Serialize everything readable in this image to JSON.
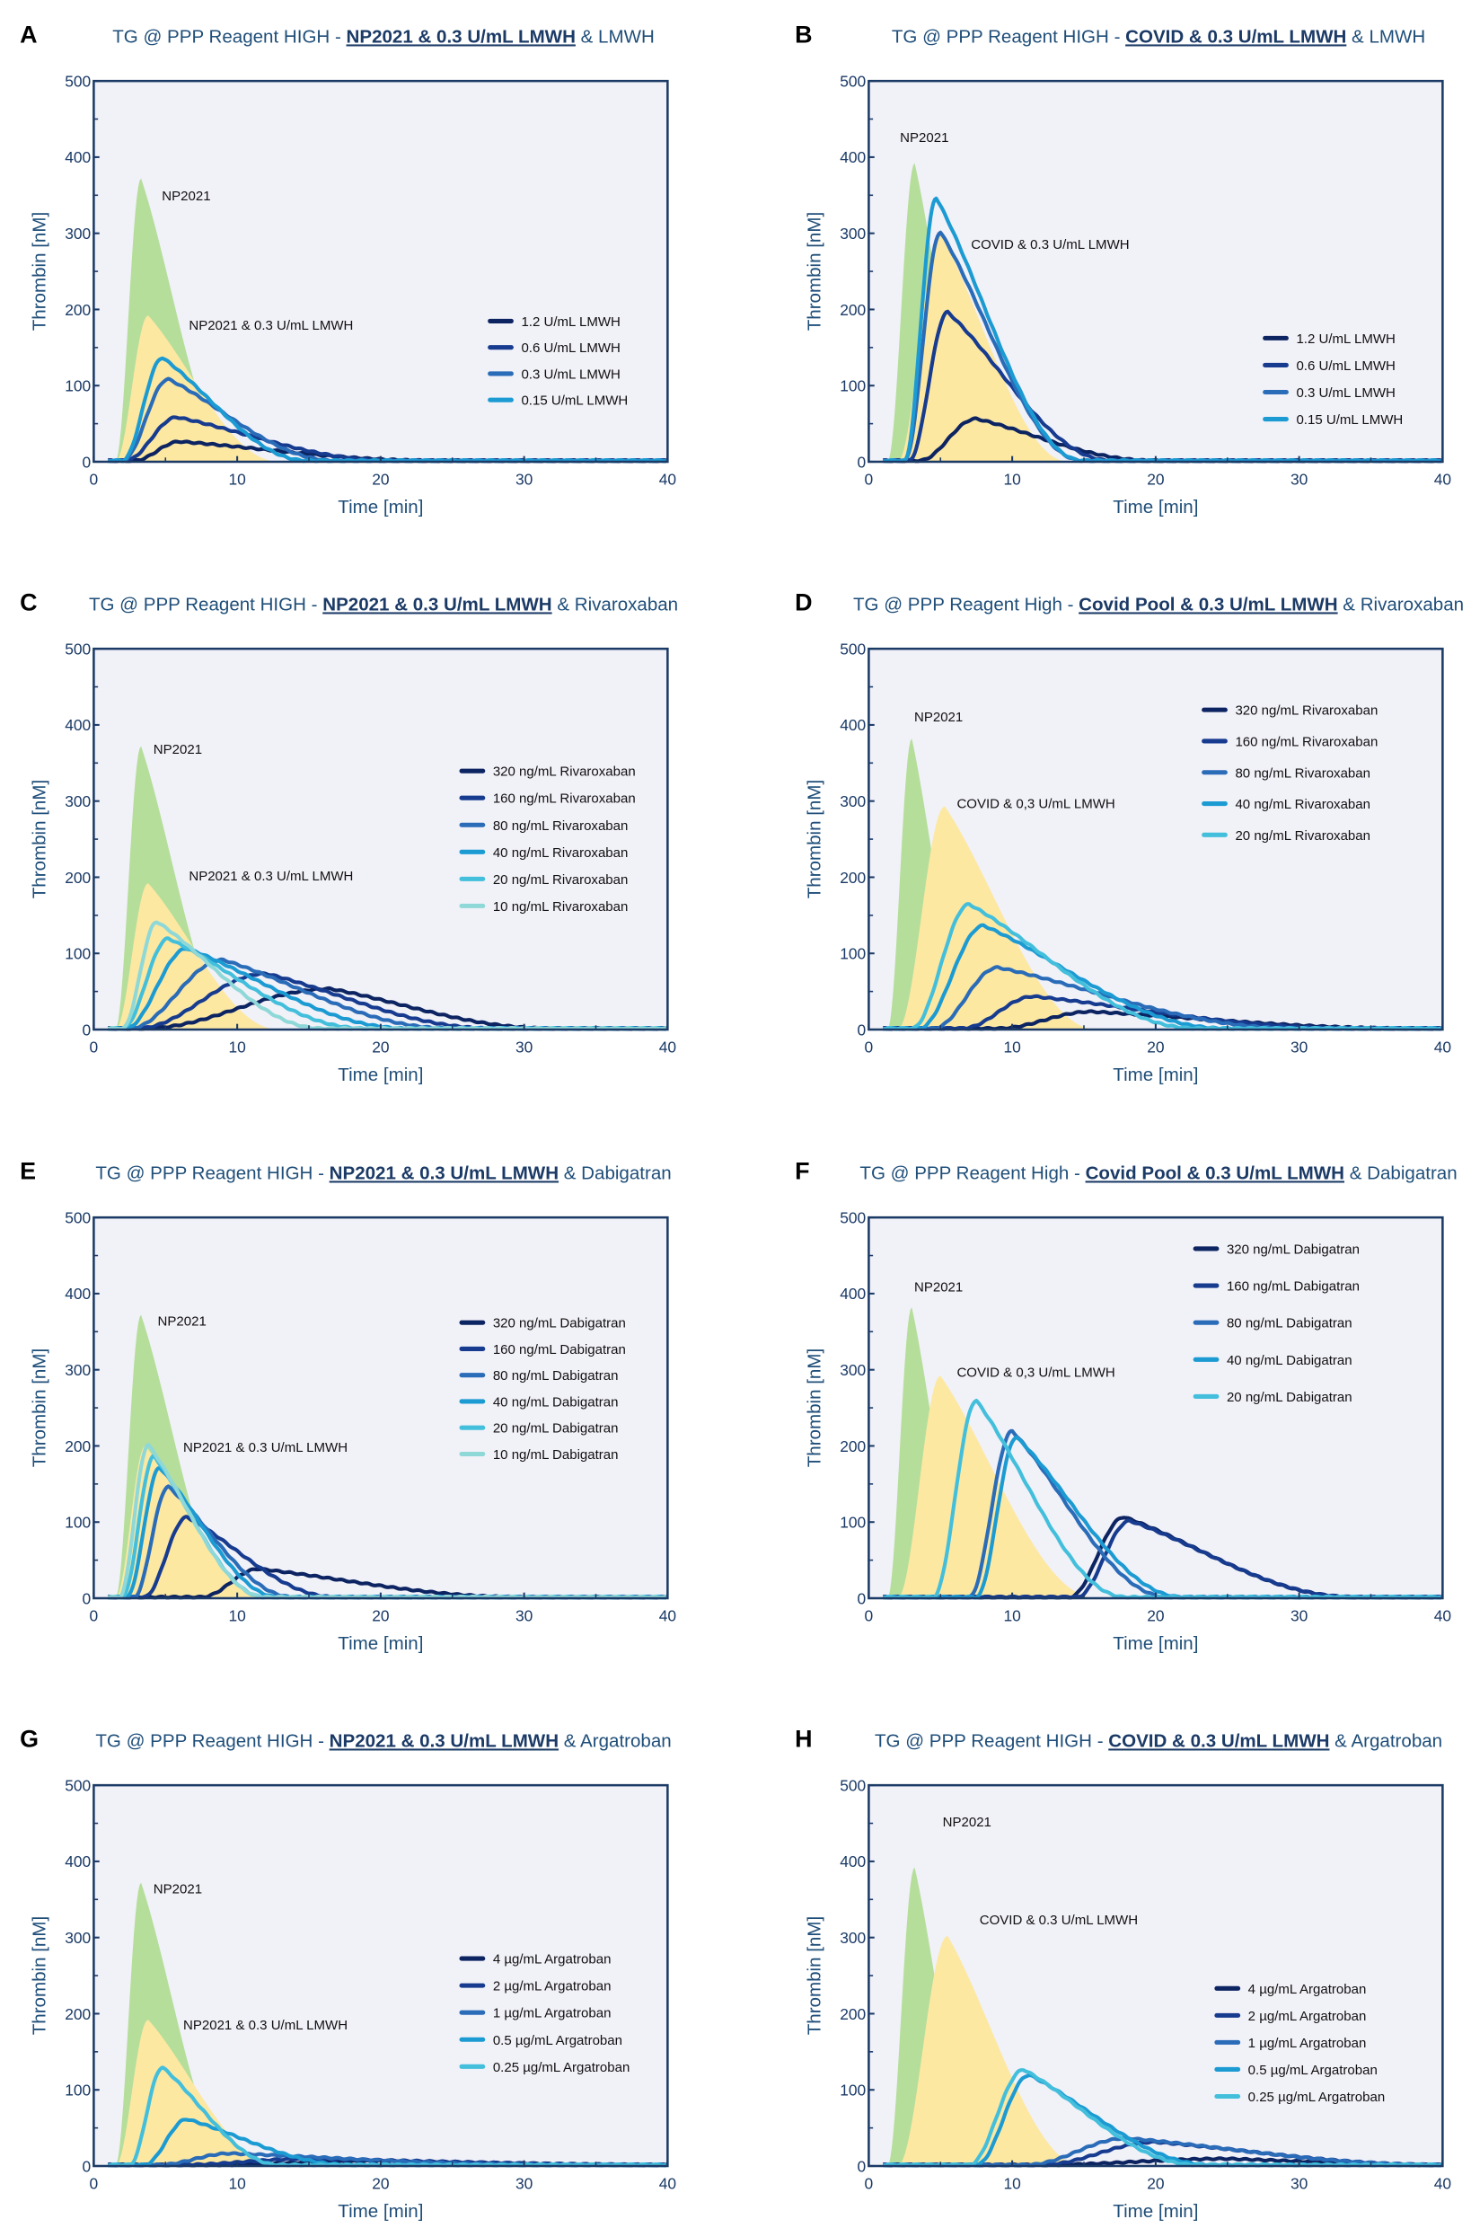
{
  "colors": {
    "plot_bg": "#f1f1f8",
    "frame": "#1b3a66",
    "np2021_fill": "#b6de9b",
    "treated_fill": "#fde8a2",
    "series": [
      "#0c2461",
      "#163b8f",
      "#2a6cb8",
      "#1c9bd3",
      "#43bfdc",
      "#8fd8d8"
    ]
  },
  "chart_data": [
    {
      "type": "area+line",
      "letter": "A",
      "title": {
        "prefix": "TG @ PPP Reagent HIGH - ",
        "highlight": "NP2021 & 0.3 U/mL LMWH",
        "suffix": " & LMWH"
      },
      "xlabel": "Time [min]",
      "ylabel": "Thrombin [nM]",
      "xlim": [
        0,
        40
      ],
      "ylim": [
        0,
        500
      ],
      "xticks": [
        0,
        10,
        20,
        30,
        40
      ],
      "yticks": [
        0,
        100,
        200,
        300,
        400,
        500
      ],
      "grid": false,
      "areas": [
        {
          "name": "NP2021",
          "onset": 1.5,
          "peak_time": 3.3,
          "peak": 372,
          "end": 10
        },
        {
          "name": "NP2021 & 0.3 U/mL LMWH",
          "onset": 1.5,
          "peak_time": 3.8,
          "peak": 192,
          "end": 13
        }
      ],
      "annotations": [
        "NP2021",
        "NP2021 & 0.3 U/mL LMWH"
      ],
      "series": [
        {
          "name": "1.2 U/mL LMWH",
          "onset": 2.8,
          "peak_time": 6.0,
          "peak": 25,
          "end": 24
        },
        {
          "name": "0.6 U/mL LMWH",
          "onset": 2.2,
          "peak_time": 5.8,
          "peak": 57,
          "end": 21
        },
        {
          "name": "0.3 U/mL LMWH",
          "onset": 2.0,
          "peak_time": 5.2,
          "peak": 107,
          "end": 17
        },
        {
          "name": "0.15 U/mL LMWH",
          "onset": 2.0,
          "peak_time": 4.8,
          "peak": 135,
          "end": 15
        }
      ]
    },
    {
      "type": "area+line",
      "letter": "B",
      "title": {
        "prefix": "TG @ PPP Reagent HIGH - ",
        "highlight": "COVID & 0.3 U/mL LMWH",
        "suffix": " & LMWH"
      },
      "xlabel": "Time [min]",
      "ylabel": "Thrombin [nM]",
      "xlim": [
        0,
        40
      ],
      "ylim": [
        0,
        500
      ],
      "xticks": [
        0,
        10,
        20,
        30,
        40
      ],
      "yticks": [
        0,
        100,
        200,
        300,
        400,
        500
      ],
      "grid": false,
      "areas": [
        {
          "name": "NP2021",
          "onset": 1.3,
          "peak_time": 3.2,
          "peak": 392,
          "end": 8
        },
        {
          "name": "COVID & 0.3 U/mL LMWH",
          "onset": 2.0,
          "peak_time": 5.0,
          "peak": 300,
          "end": 14
        }
      ],
      "annotations": [
        "NP2021",
        "COVID & 0.3 U/mL LMWH"
      ],
      "series": [
        {
          "name": "1.2 U/mL LMWH",
          "onset": 3.5,
          "peak_time": 7.5,
          "peak": 55,
          "end": 20
        },
        {
          "name": "0.6 U/mL LMWH",
          "onset": 2.8,
          "peak_time": 5.5,
          "peak": 195,
          "end": 17
        },
        {
          "name": "0.3 U/mL LMWH",
          "onset": 2.5,
          "peak_time": 5.0,
          "peak": 300,
          "end": 15
        },
        {
          "name": "0.15 U/mL LMWH",
          "onset": 2.5,
          "peak_time": 4.7,
          "peak": 345,
          "end": 15
        }
      ]
    },
    {
      "type": "area+line",
      "letter": "C",
      "title": {
        "prefix": "TG @ PPP Reagent HIGH - ",
        "highlight": "NP2021 & 0.3 U/mL LMWH",
        "suffix": " & Rivaroxaban"
      },
      "xlabel": "Time [min]",
      "ylabel": "Thrombin [nM]",
      "xlim": [
        0,
        40
      ],
      "ylim": [
        0,
        500
      ],
      "xticks": [
        0,
        10,
        20,
        30,
        40
      ],
      "yticks": [
        0,
        100,
        200,
        300,
        400,
        500
      ],
      "grid": false,
      "areas": [
        {
          "name": "NP2021",
          "onset": 1.5,
          "peak_time": 3.3,
          "peak": 372,
          "end": 10
        },
        {
          "name": "NP2021 & 0.3 U/mL LMWH",
          "onset": 1.5,
          "peak_time": 3.8,
          "peak": 192,
          "end": 13
        }
      ],
      "annotations": [
        "NP2021",
        "NP2021 & 0.3 U/mL LMWH"
      ],
      "series": [
        {
          "name": "320 ng/mL Rivaroxaban",
          "onset": 3.5,
          "peak_time": 16.5,
          "peak": 52,
          "end": 32
        },
        {
          "name": "160 ng/mL Rivaroxaban",
          "onset": 3.0,
          "peak_time": 12.0,
          "peak": 72,
          "end": 28
        },
        {
          "name": "80 ng/mL Rivaroxaban",
          "onset": 2.5,
          "peak_time": 9.0,
          "peak": 90,
          "end": 25
        },
        {
          "name": "40 ng/mL Rivaroxaban",
          "onset": 2.2,
          "peak_time": 6.5,
          "peak": 105,
          "end": 22
        },
        {
          "name": "20 ng/mL Rivaroxaban",
          "onset": 2.0,
          "peak_time": 5.2,
          "peak": 118,
          "end": 19
        },
        {
          "name": "10 ng/mL Rivaroxaban",
          "onset": 2.0,
          "peak_time": 4.4,
          "peak": 140,
          "end": 16
        }
      ]
    },
    {
      "type": "area+line",
      "letter": "D",
      "title": {
        "prefix": "TG @ PPP Reagent High - ",
        "highlight": "Covid Pool & 0.3 U/mL LMWH",
        "suffix": " & Rivaroxaban"
      },
      "xlabel": "Time [min]",
      "ylabel": "Thrombin [nM]",
      "xlim": [
        0,
        40
      ],
      "ylim": [
        0,
        500
      ],
      "xticks": [
        0,
        10,
        20,
        30,
        40
      ],
      "yticks": [
        0,
        100,
        200,
        300,
        400,
        500
      ],
      "grid": false,
      "areas": [
        {
          "name": "NP2021",
          "onset": 1.3,
          "peak_time": 3.0,
          "peak": 382,
          "end": 7.5
        },
        {
          "name": "COVID & 0.3 U/mL LMWH",
          "onset": 2.0,
          "peak_time": 5.3,
          "peak": 293,
          "end": 16
        }
      ],
      "annotations": [
        "NP2021",
        "COVID & 0,3 U/mL LMWH"
      ],
      "series": [
        {
          "name": "320 ng/mL Rivaroxaban",
          "onset": 9.0,
          "peak_time": 15.5,
          "peak": 22,
          "end": 38
        },
        {
          "name": "160 ng/mL Rivaroxaban",
          "onset": 6.5,
          "peak_time": 11.5,
          "peak": 42,
          "end": 34
        },
        {
          "name": "80 ng/mL Rivaroxaban",
          "onset": 4.5,
          "peak_time": 9.0,
          "peak": 80,
          "end": 30
        },
        {
          "name": "40 ng/mL Rivaroxaban",
          "onset": 3.5,
          "peak_time": 8.0,
          "peak": 135,
          "end": 25
        },
        {
          "name": "20 ng/mL Rivaroxaban",
          "onset": 3.0,
          "peak_time": 7.0,
          "peak": 163,
          "end": 23
        }
      ]
    },
    {
      "type": "area+line",
      "letter": "E",
      "title": {
        "prefix": "TG @ PPP Reagent HIGH - ",
        "highlight": "NP2021 & 0.3 U/mL LMWH",
        "suffix": " & Dabigatran"
      },
      "xlabel": "Time [min]",
      "ylabel": "Thrombin [nM]",
      "xlim": [
        0,
        40
      ],
      "ylim": [
        0,
        500
      ],
      "xticks": [
        0,
        10,
        20,
        30,
        40
      ],
      "yticks": [
        0,
        100,
        200,
        300,
        400,
        500
      ],
      "grid": false,
      "areas": [
        {
          "name": "NP2021",
          "onset": 1.5,
          "peak_time": 3.3,
          "peak": 372,
          "end": 10
        },
        {
          "name": "NP2021 & 0.3 U/mL LMWH",
          "onset": 1.5,
          "peak_time": 3.6,
          "peak": 200,
          "end": 12
        }
      ],
      "annotations": [
        "NP2021",
        "NP2021 & 0.3 U/mL LMWH"
      ],
      "series": [
        {
          "name": "320 ng/mL Dabigatran",
          "onset": 7.5,
          "peak_time": 11.5,
          "peak": 37,
          "end": 30
        },
        {
          "name": "160 ng/mL Dabigatran",
          "onset": 3.5,
          "peak_time": 6.5,
          "peak": 105,
          "end": 17
        },
        {
          "name": "80 ng/mL Dabigatran",
          "onset": 2.8,
          "peak_time": 5.2,
          "peak": 145,
          "end": 14
        },
        {
          "name": "40 ng/mL Dabigatran",
          "onset": 2.3,
          "peak_time": 4.6,
          "peak": 170,
          "end": 13
        },
        {
          "name": "20 ng/mL Dabigatran",
          "onset": 2.0,
          "peak_time": 4.2,
          "peak": 185,
          "end": 12
        },
        {
          "name": "10 ng/mL Dabigatran",
          "onset": 1.8,
          "peak_time": 3.8,
          "peak": 200,
          "end": 12
        }
      ]
    },
    {
      "type": "area+line",
      "letter": "F",
      "title": {
        "prefix": "TG @ PPP Reagent High - ",
        "highlight": "Covid Pool & 0.3 U/mL LMWH",
        "suffix": " & Dabigatran"
      },
      "xlabel": "Time [min]",
      "ylabel": "Thrombin [nM]",
      "xlim": [
        0,
        40
      ],
      "ylim": [
        0,
        500
      ],
      "xticks": [
        0,
        10,
        20,
        30,
        40
      ],
      "yticks": [
        0,
        100,
        200,
        300,
        400,
        500
      ],
      "grid": false,
      "areas": [
        {
          "name": "NP2021",
          "onset": 1.3,
          "peak_time": 3.0,
          "peak": 382,
          "end": 7.5
        },
        {
          "name": "COVID & 0.3 U/mL LMWH",
          "onset": 2.0,
          "peak_time": 5.0,
          "peak": 292,
          "end": 16
        }
      ],
      "annotations": [
        "NP2021",
        "COVID & 0,3 U/mL LMWH"
      ],
      "series": [
        {
          "name": "320 ng/mL Dabigatran",
          "onset": 14.0,
          "peak_time": 17.8,
          "peak": 105,
          "end": 34
        },
        {
          "name": "160 ng/mL Dabigatran",
          "onset": 14.5,
          "peak_time": 18.2,
          "peak": 100,
          "end": 34
        },
        {
          "name": "80 ng/mL Dabigatran",
          "onset": 7.0,
          "peak_time": 10.0,
          "peak": 218,
          "end": 21
        },
        {
          "name": "40 ng/mL Dabigatran",
          "onset": 7.5,
          "peak_time": 10.3,
          "peak": 210,
          "end": 22
        },
        {
          "name": "20 ng/mL Dabigatran",
          "onset": 4.5,
          "peak_time": 7.5,
          "peak": 258,
          "end": 18
        }
      ]
    },
    {
      "type": "area+line",
      "letter": "G",
      "title": {
        "prefix": "TG @ PPP Reagent HIGH - ",
        "highlight": "NP2021 & 0.3 U/mL LMWH",
        "suffix": " & Argatroban"
      },
      "xlabel": "Time [min]",
      "ylabel": "Thrombin [nM]",
      "xlim": [
        0,
        40
      ],
      "ylim": [
        0,
        500
      ],
      "xticks": [
        0,
        10,
        20,
        30,
        40
      ],
      "yticks": [
        0,
        100,
        200,
        300,
        400,
        500
      ],
      "grid": false,
      "areas": [
        {
          "name": "NP2021",
          "onset": 1.5,
          "peak_time": 3.3,
          "peak": 372,
          "end": 10
        },
        {
          "name": "NP2021 & 0.3 U/mL LMWH",
          "onset": 1.5,
          "peak_time": 3.8,
          "peak": 192,
          "end": 13
        }
      ],
      "annotations": [
        "NP2021",
        "NP2021 & 0.3 U/mL LMWH"
      ],
      "series": [
        {
          "name": "4 µg/mL Argatroban",
          "onset": 8.0,
          "peak_time": 20.0,
          "peak": 5,
          "end": 40
        },
        {
          "name": "2 µg/mL Argatroban",
          "onset": 6.0,
          "peak_time": 15.0,
          "peak": 8,
          "end": 40
        },
        {
          "name": "1 µg/mL Argatroban",
          "onset": 4.5,
          "peak_time": 9.5,
          "peak": 15,
          "end": 32
        },
        {
          "name": "0.5 µg/mL Argatroban",
          "onset": 3.5,
          "peak_time": 6.5,
          "peak": 60,
          "end": 18
        },
        {
          "name": "0.25 µg/mL Argatroban",
          "onset": 2.5,
          "peak_time": 4.8,
          "peak": 128,
          "end": 13
        }
      ]
    },
    {
      "type": "area+line",
      "letter": "H",
      "title": {
        "prefix": "TG @ PPP Reagent HIGH - ",
        "highlight": "COVID & 0.3 U/mL LMWH",
        "suffix": " & Argatroban"
      },
      "xlabel": "Time [min]",
      "ylabel": "Thrombin [nM]",
      "xlim": [
        0,
        40
      ],
      "ylim": [
        0,
        500
      ],
      "xticks": [
        0,
        10,
        20,
        30,
        40
      ],
      "yticks": [
        0,
        100,
        200,
        300,
        400,
        500
      ],
      "grid": false,
      "areas": [
        {
          "name": "NP2021",
          "onset": 1.3,
          "peak_time": 3.2,
          "peak": 392,
          "end": 8
        },
        {
          "name": "COVID & 0.3 U/mL LMWH",
          "onset": 2.0,
          "peak_time": 5.5,
          "peak": 302,
          "end": 15
        }
      ],
      "annotations": [
        "NP2021",
        "COVID & 0.3 U/mL LMWH"
      ],
      "series": [
        {
          "name": "4 µg/mL Argatroban",
          "onset": 12.0,
          "peak_time": 25.0,
          "peak": 8,
          "end": 40
        },
        {
          "name": "2 µg/mL Argatroban",
          "onset": 12.0,
          "peak_time": 20.0,
          "peak": 30,
          "end": 40
        },
        {
          "name": "1 µg/mL Argatroban",
          "onset": 11.0,
          "peak_time": 18.0,
          "peak": 35,
          "end": 40
        },
        {
          "name": "0.5 µg/mL Argatroban",
          "onset": 7.5,
          "peak_time": 11.2,
          "peak": 118,
          "end": 24
        },
        {
          "name": "0.25 µg/mL Argatroban",
          "onset": 7.0,
          "peak_time": 10.8,
          "peak": 125,
          "end": 23
        }
      ]
    }
  ]
}
